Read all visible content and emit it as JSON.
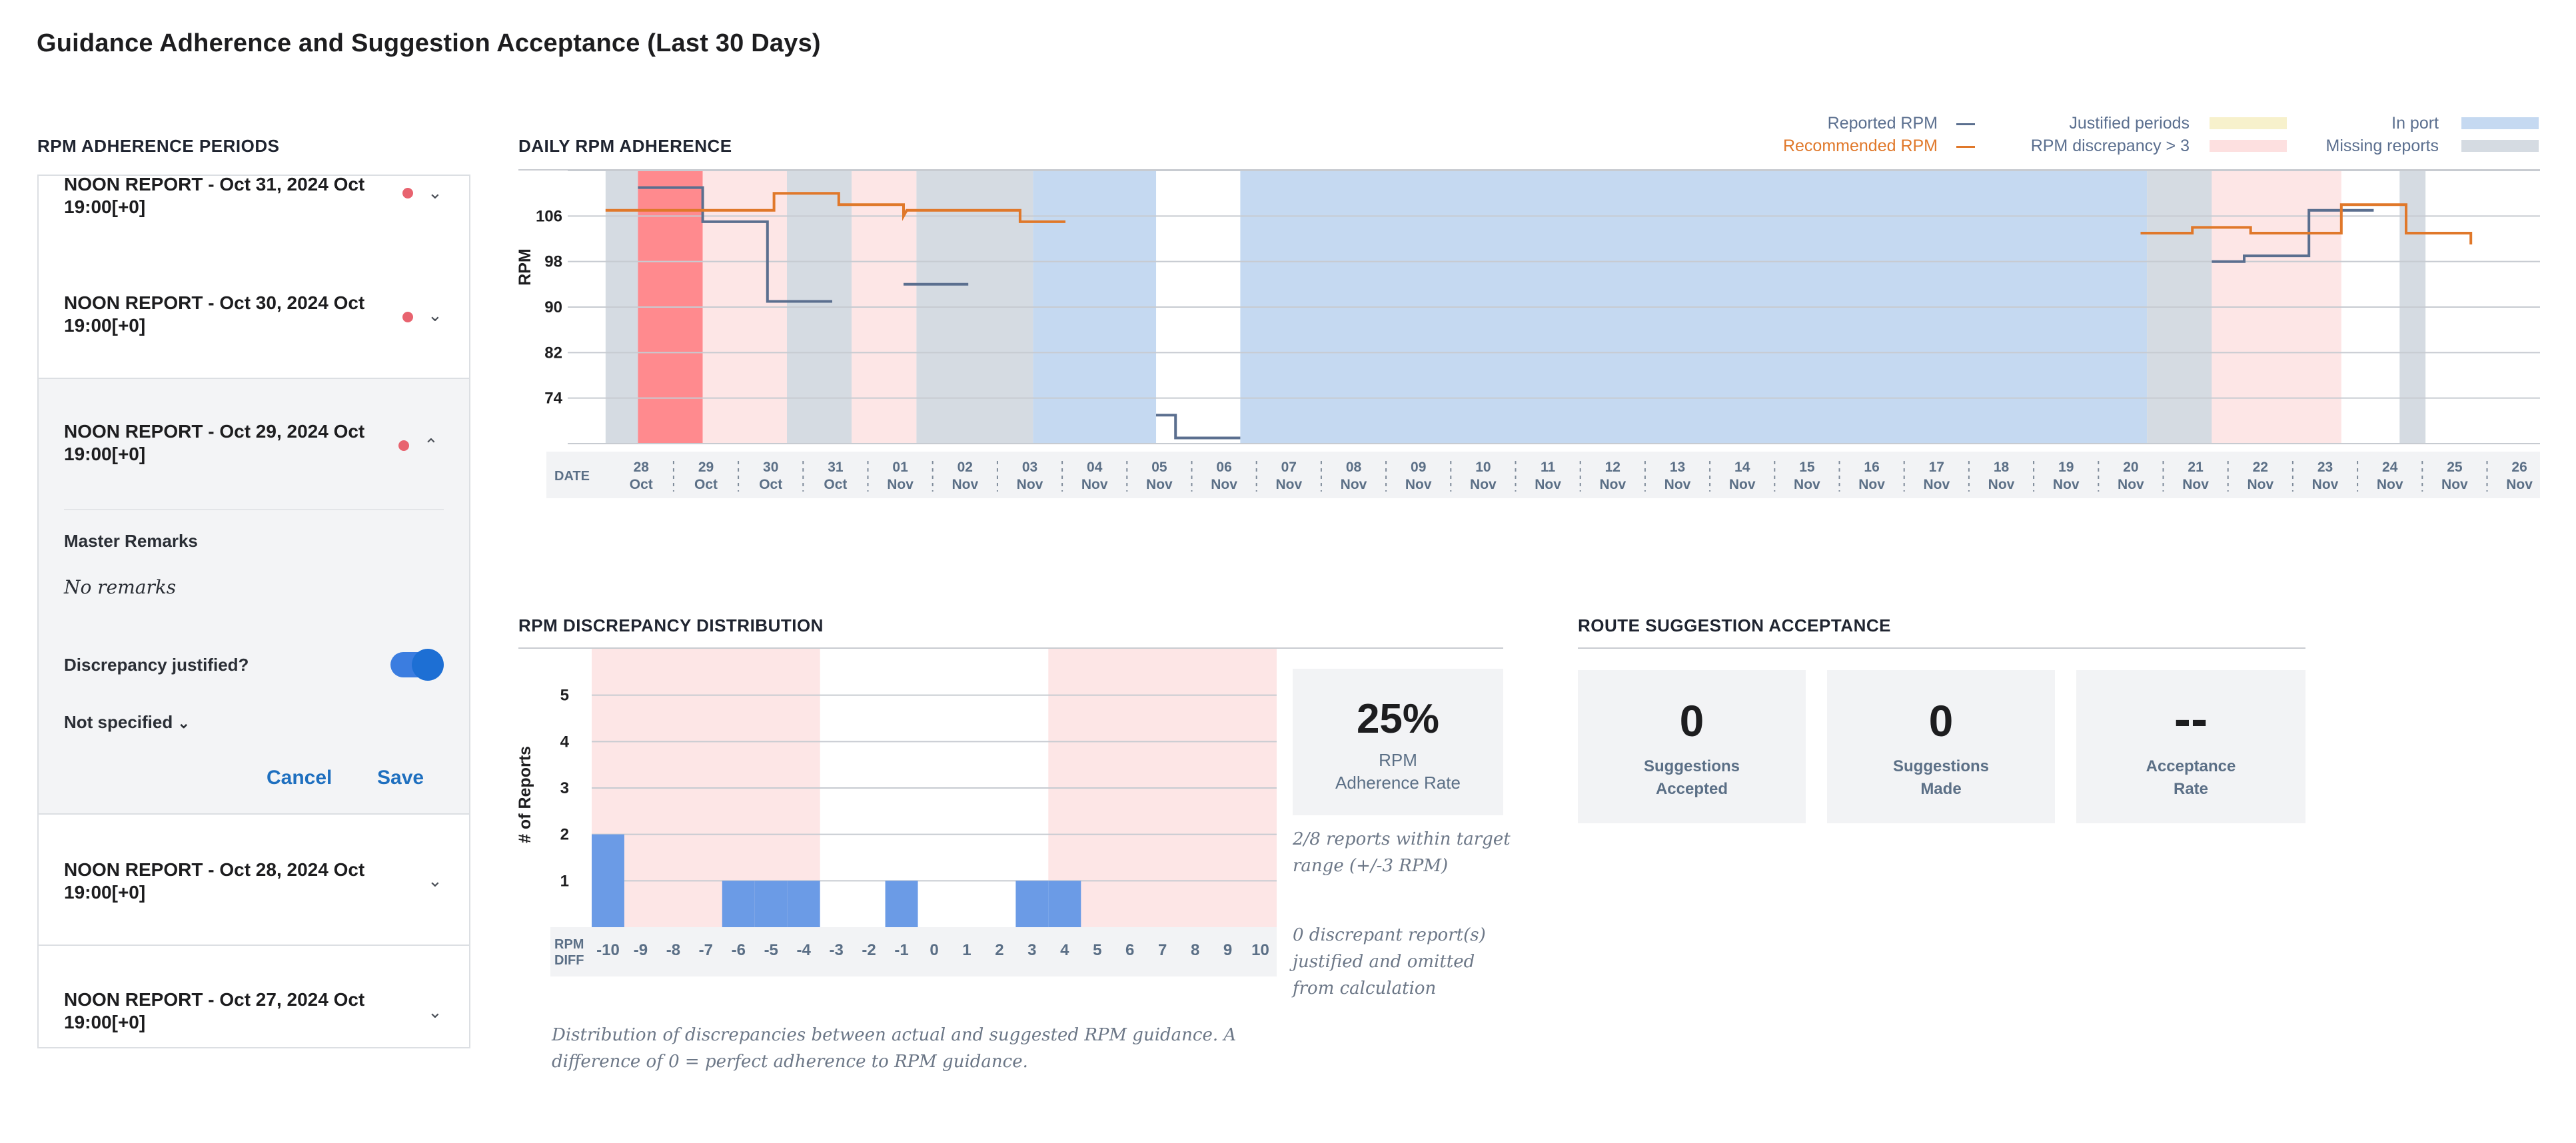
{
  "page_title": "Guidance Adherence and Suggestion Acceptance (Last 30 Days)",
  "left_panel": {
    "heading": "RPM ADHERENCE PERIODS",
    "reports": [
      {
        "title": "NOON REPORT - Oct 31, 2024 Oct 19:00[+0]",
        "expanded": false
      },
      {
        "title": "NOON REPORT - Oct 30, 2024 Oct 19:00[+0]",
        "expanded": false
      },
      {
        "title": "NOON REPORT - Oct 29, 2024 Oct 19:00[+0]",
        "expanded": true
      },
      {
        "title": "NOON REPORT - Oct 28, 2024 Oct 19:00[+0]",
        "expanded": false
      },
      {
        "title": "NOON REPORT - Oct 27, 2024 Oct 19:00[+0]",
        "expanded": false
      }
    ],
    "detail": {
      "master_remarks_label": "Master Remarks",
      "master_remarks_value": "No remarks",
      "justified_label": "Discrepancy justified?",
      "justified_on": true,
      "reason_select": "Not specified",
      "cancel_label": "Cancel",
      "save_label": "Save"
    }
  },
  "daily_chart": {
    "heading": "DAILY RPM ADHERENCE",
    "legend": {
      "reported": "Reported RPM",
      "recommended": "Recommended RPM",
      "justified": "Justified periods",
      "discrepancy": "RPM discrepancy > 3",
      "in_port": "In port",
      "missing": "Missing reports"
    },
    "colors": {
      "reported": "#5b6f8f",
      "recommended": "#e0782a",
      "justified": "#f7f1cc",
      "discrepancy": "#fde6e6",
      "discrepancy_strong": "#ff8a8e",
      "in_port": "#c5d9f1",
      "missing": "#d5dbe2"
    },
    "date_label": "DATE"
  },
  "chart_data": [
    {
      "type": "line",
      "title": "DAILY RPM ADHERENCE",
      "ylabel": "RPM",
      "xlabel": "DATE",
      "yticks": [
        74,
        82,
        90,
        98,
        106
      ],
      "ylim": [
        66,
        114
      ],
      "x": [
        {
          "day": "28",
          "month": "Oct"
        },
        {
          "day": "29",
          "month": "Oct"
        },
        {
          "day": "30",
          "month": "Oct"
        },
        {
          "day": "31",
          "month": "Oct"
        },
        {
          "day": "01",
          "month": "Nov"
        },
        {
          "day": "02",
          "month": "Nov"
        },
        {
          "day": "03",
          "month": "Nov"
        },
        {
          "day": "04",
          "month": "Nov"
        },
        {
          "day": "05",
          "month": "Nov"
        },
        {
          "day": "06",
          "month": "Nov"
        },
        {
          "day": "07",
          "month": "Nov"
        },
        {
          "day": "08",
          "month": "Nov"
        },
        {
          "day": "09",
          "month": "Nov"
        },
        {
          "day": "10",
          "month": "Nov"
        },
        {
          "day": "11",
          "month": "Nov"
        },
        {
          "day": "12",
          "month": "Nov"
        },
        {
          "day": "13",
          "month": "Nov"
        },
        {
          "day": "14",
          "month": "Nov"
        },
        {
          "day": "15",
          "month": "Nov"
        },
        {
          "day": "16",
          "month": "Nov"
        },
        {
          "day": "17",
          "month": "Nov"
        },
        {
          "day": "18",
          "month": "Nov"
        },
        {
          "day": "19",
          "month": "Nov"
        },
        {
          "day": "20",
          "month": "Nov"
        },
        {
          "day": "21",
          "month": "Nov"
        },
        {
          "day": "22",
          "month": "Nov"
        },
        {
          "day": "23",
          "month": "Nov"
        },
        {
          "day": "24",
          "month": "Nov"
        },
        {
          "day": "25",
          "month": "Nov"
        },
        {
          "day": "26",
          "month": "Nov"
        }
      ],
      "bands": [
        {
          "kind": "missing",
          "from": -0.3,
          "to": 0.2
        },
        {
          "kind": "discrepancy_strong",
          "from": 0.2,
          "to": 1.2
        },
        {
          "kind": "discrepancy",
          "from": 1.2,
          "to": 2.5
        },
        {
          "kind": "missing",
          "from": 2.5,
          "to": 3.5
        },
        {
          "kind": "discrepancy",
          "from": 3.5,
          "to": 4.5
        },
        {
          "kind": "missing",
          "from": 4.5,
          "to": 6.3
        },
        {
          "kind": "in_port",
          "from": 6.3,
          "to": 8.2
        },
        {
          "kind": "in_port",
          "from": 9.5,
          "to": 23.5
        },
        {
          "kind": "missing",
          "from": 23.5,
          "to": 24.5
        },
        {
          "kind": "discrepancy",
          "from": 24.5,
          "to": 26.5
        },
        {
          "kind": "missing",
          "from": 27.4,
          "to": 27.8
        }
      ],
      "series": [
        {
          "name": "Reported RPM",
          "segments": [
            [
              [
                0.2,
                111
              ],
              [
                1.2,
                111
              ],
              [
                1.2,
                105
              ],
              [
                2.2,
                105
              ],
              [
                2.2,
                91
              ],
              [
                3.2,
                91
              ]
            ],
            [
              [
                4.3,
                94
              ],
              [
                5.3,
                94
              ]
            ],
            [
              [
                8.2,
                71
              ],
              [
                8.5,
                71
              ],
              [
                8.5,
                67
              ],
              [
                9.5,
                67
              ]
            ],
            [
              [
                24.5,
                98
              ],
              [
                25.0,
                98
              ],
              [
                25.0,
                99
              ],
              [
                26.0,
                99
              ],
              [
                26.0,
                107
              ],
              [
                27.0,
                107
              ]
            ]
          ]
        },
        {
          "name": "Recommended RPM",
          "segments": [
            [
              [
                -0.3,
                107
              ],
              [
                2.3,
                107
              ],
              [
                2.3,
                110
              ],
              [
                3.3,
                110
              ],
              [
                3.3,
                108
              ],
              [
                4.3,
                108
              ],
              [
                4.3,
                106
              ],
              [
                4.35,
                107
              ],
              [
                6.1,
                107
              ],
              [
                6.1,
                105
              ],
              [
                6.8,
                105
              ]
            ],
            [
              [
                23.4,
                103
              ],
              [
                24.2,
                103
              ],
              [
                24.2,
                104
              ],
              [
                25.1,
                104
              ],
              [
                25.1,
                103
              ],
              [
                26.5,
                103
              ],
              [
                26.5,
                108
              ],
              [
                27.5,
                108
              ],
              [
                27.5,
                103
              ],
              [
                28.5,
                103
              ],
              [
                28.5,
                101
              ]
            ]
          ]
        }
      ]
    },
    {
      "type": "bar",
      "title": "RPM DISCREPANCY DISTRIBUTION",
      "ylabel": "# of Reports",
      "xlabel": "RPM DIFF",
      "categories": [
        "-10",
        "-9",
        "-8",
        "-7",
        "-6",
        "-5",
        "-4",
        "-3",
        "-2",
        "-1",
        "0",
        "1",
        "2",
        "3",
        "4",
        "5",
        "6",
        "7",
        "8",
        "9",
        "10"
      ],
      "values": [
        2,
        0,
        0,
        0,
        1,
        1,
        1,
        0,
        0,
        1,
        0,
        0,
        0,
        1,
        1,
        0,
        0,
        0,
        0,
        0,
        0
      ],
      "yticks": [
        1,
        2,
        3,
        4,
        5
      ],
      "ylim": [
        0,
        6
      ]
    }
  ],
  "distribution": {
    "heading": "RPM DISCREPANCY DISTRIBUTION",
    "kpi_value": "25%",
    "kpi_label_1": "RPM",
    "kpi_label_2": "Adherence Rate",
    "note_1": "2/8 reports within target range (+/-3 RPM)",
    "note_2": "0 discrepant report(s) justified and omitted from calculation",
    "caption": "Distribution of discrepancies between actual and suggested RPM guidance. A difference of 0 = perfect adherence to RPM guidance."
  },
  "route": {
    "heading": "ROUTE SUGGESTION ACCEPTANCE",
    "cards": [
      {
        "value": "0",
        "label_1": "Suggestions",
        "label_2": "Accepted"
      },
      {
        "value": "0",
        "label_1": "Suggestions",
        "label_2": "Made"
      },
      {
        "value": "--",
        "label_1": "Acceptance",
        "label_2": "Rate"
      }
    ]
  }
}
